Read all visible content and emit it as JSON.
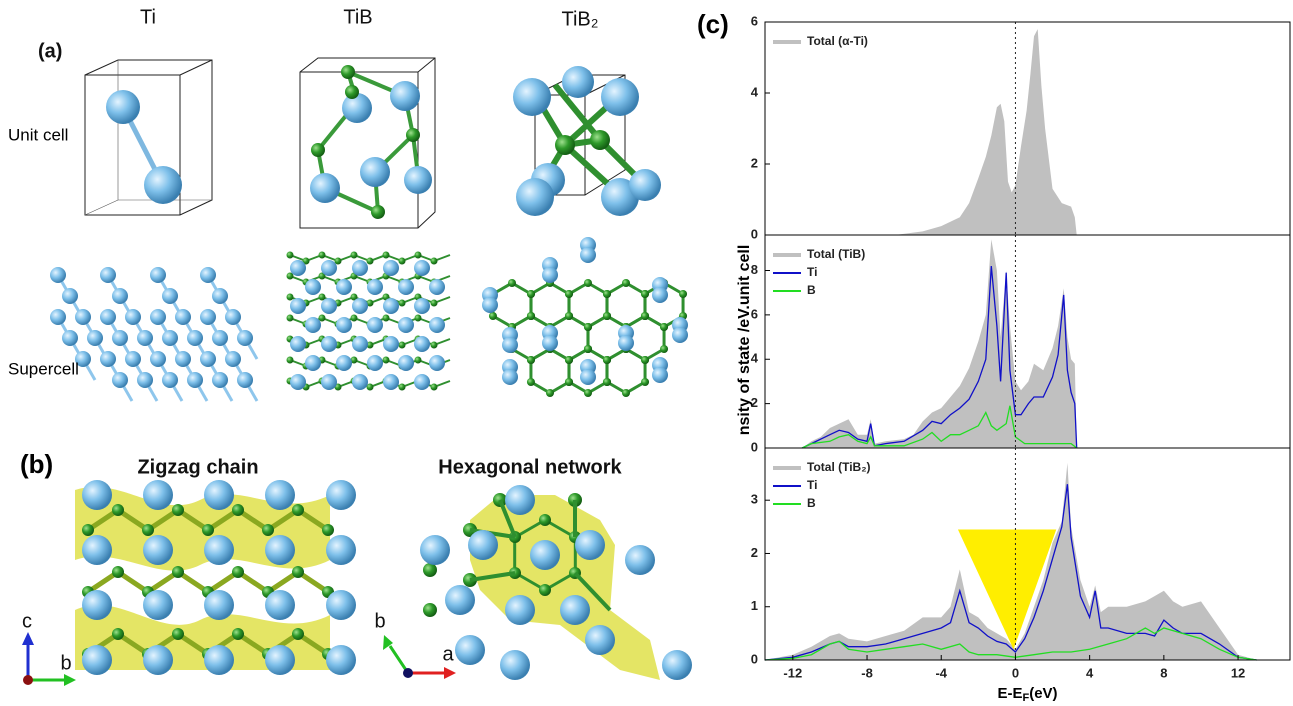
{
  "figure": {
    "panel_a": "(a)",
    "ti": "Ti",
    "tib": "TiB",
    "tib2": "TiB₂",
    "unit_cell": "Unit cell",
    "supercell": "Supercell",
    "panel_b": "(b)",
    "zigzag": "Zigzag chain",
    "hexagonal": "Hexagonal network",
    "axis_c": "c",
    "axis_b1": "b",
    "axis_b2": "b",
    "axis_a": "a",
    "panel_c": "(c)",
    "ylabel": "nsity of state /eV.unit cell"
  },
  "chart_data": [
    {
      "type": "line",
      "xlim": [
        -13.5,
        14.8
      ],
      "ylim": [
        0,
        6
      ],
      "yticks": [
        0,
        2,
        4,
        6
      ],
      "vline": 0,
      "series": [
        {
          "name": "Total (α-Ti)",
          "color": "#c0c0c0",
          "style": "area",
          "x": [
            -6.5,
            -5,
            -4,
            -3,
            -2.5,
            -2,
            -1.6,
            -1.3,
            -1,
            -0.8,
            -0.6,
            -0.4,
            -0.2,
            0,
            0.3,
            0.6,
            0.8,
            1,
            1.2,
            1.4,
            1.6,
            2,
            2.5,
            3,
            3.2,
            3.3
          ],
          "values": [
            0,
            0.1,
            0.25,
            0.5,
            0.9,
            1.6,
            2.2,
            2.8,
            3.6,
            3.7,
            3.2,
            1.5,
            1.2,
            1.4,
            2.5,
            3.5,
            4.5,
            5.6,
            5.8,
            4.2,
            3,
            1.3,
            0.9,
            0.8,
            0.5,
            0
          ]
        }
      ]
    },
    {
      "type": "line",
      "xlim": [
        -13.5,
        14.8
      ],
      "ylim": [
        0,
        9.6
      ],
      "yticks": [
        0,
        2,
        4,
        6,
        8
      ],
      "vline": 0,
      "series": [
        {
          "name": "Total (TiB)",
          "color": "#c0c0c0",
          "style": "area",
          "x": [
            -11.5,
            -11,
            -10.5,
            -10,
            -9.5,
            -9,
            -8.5,
            -8,
            -7.8,
            -7.6,
            -7,
            -6,
            -5.5,
            -5,
            -4.5,
            -4,
            -3.5,
            -3,
            -2.5,
            -2,
            -1.6,
            -1.3,
            -1,
            -0.8,
            -0.5,
            -0.3,
            0,
            0.3,
            0.7,
            1,
            1.5,
            2,
            2.3,
            2.6,
            2.8,
            3,
            3.2,
            3.3
          ],
          "values": [
            0,
            0.3,
            0.5,
            0.9,
            1.1,
            1.3,
            0.6,
            0.6,
            1.3,
            0.2,
            0.3,
            0.4,
            0.6,
            1.2,
            1.6,
            1.8,
            2.3,
            2.8,
            3.6,
            4.8,
            6,
            9.4,
            8,
            5,
            8,
            5.5,
            3,
            2.6,
            3,
            3.8,
            3.5,
            4.5,
            5.5,
            7.2,
            5,
            4,
            3.8,
            0
          ]
        },
        {
          "name": "Ti",
          "color": "#1010c8",
          "style": "line",
          "x": [
            -11.5,
            -11,
            -10,
            -9.5,
            -9,
            -8.5,
            -8,
            -7.8,
            -7.6,
            -7,
            -6,
            -5,
            -4.5,
            -4,
            -3.5,
            -3,
            -2.5,
            -2,
            -1.6,
            -1.3,
            -1,
            -0.8,
            -0.5,
            -0.3,
            0,
            0.3,
            0.7,
            1,
            1.5,
            2,
            2.3,
            2.6,
            2.8,
            3,
            3.2,
            3.3
          ],
          "values": [
            0,
            0.2,
            0.6,
            0.8,
            0.7,
            0.4,
            0.3,
            1.1,
            0.1,
            0.2,
            0.3,
            0.8,
            1.2,
            1.1,
            1.5,
            1.8,
            2.2,
            3,
            4,
            8.2,
            5.5,
            3,
            7.9,
            3.5,
            1.5,
            1.5,
            2,
            2.3,
            2.3,
            3.2,
            4.2,
            6.9,
            3.5,
            2.5,
            2,
            0
          ]
        },
        {
          "name": "B",
          "color": "#22dd22",
          "style": "line",
          "x": [
            -11.5,
            -11,
            -10,
            -9.5,
            -9,
            -8.5,
            -8,
            -7.8,
            -7.6,
            -7,
            -6,
            -5,
            -4.5,
            -4,
            -3.5,
            -3,
            -2.5,
            -2,
            -1.6,
            -1.3,
            -1,
            -0.5,
            -0.3,
            0,
            0.5,
            1,
            2,
            3,
            3.3
          ],
          "values": [
            0,
            0.2,
            0.3,
            0.5,
            0.6,
            0.3,
            0.2,
            0.5,
            0.1,
            0.1,
            0.1,
            0.4,
            0.7,
            0.3,
            0.6,
            0.6,
            0.8,
            1,
            1.6,
            1,
            0.8,
            1.1,
            1.9,
            0.5,
            0.2,
            0.2,
            0.2,
            0.2,
            0
          ]
        }
      ]
    },
    {
      "type": "line",
      "xlim": [
        -13.5,
        14.8
      ],
      "ylim": [
        0,
        3.98
      ],
      "yticks": [
        0,
        1,
        2,
        3
      ],
      "xticks": [
        -12,
        -8,
        -4,
        0,
        4,
        8,
        12
      ],
      "vline": 0,
      "xlabel": [
        "E-E",
        "F",
        "(eV)"
      ],
      "series": [
        {
          "name": "Total (TiB₂)",
          "color": "#c0c0c0",
          "style": "area",
          "x": [
            -13.5,
            -12,
            -11,
            -10,
            -9.5,
            -9,
            -8,
            -7,
            -6,
            -5,
            -4,
            -3.5,
            -3,
            -2.5,
            -2,
            -1.5,
            -1,
            -0.5,
            0,
            0.5,
            1,
            1.5,
            2,
            2.5,
            2.8,
            3,
            3.5,
            4,
            4.3,
            4.6,
            5,
            6,
            7,
            7.5,
            8,
            8.5,
            9,
            10,
            11,
            12,
            13
          ],
          "values": [
            0,
            0.1,
            0.25,
            0.45,
            0.5,
            0.4,
            0.35,
            0.45,
            0.55,
            0.8,
            0.8,
            1,
            1.7,
            0.9,
            0.8,
            0.6,
            0.5,
            0.4,
            0.2,
            0.5,
            1,
            1.5,
            2.2,
            2.6,
            3.7,
            2.5,
            1.5,
            1,
            1.4,
            0.9,
            1,
            1,
            1.1,
            1.2,
            1.3,
            1.1,
            1,
            1.1,
            0.6,
            0.1,
            0
          ]
        },
        {
          "name": "Ti",
          "color": "#1010c8",
          "style": "line",
          "x": [
            -13.5,
            -12,
            -11,
            -10,
            -9.5,
            -9,
            -8,
            -7,
            -6,
            -5,
            -4,
            -3.5,
            -3,
            -2.5,
            -2,
            -1.5,
            -1,
            -0.5,
            0,
            0.5,
            1,
            1.5,
            2,
            2.5,
            2.8,
            3,
            3.5,
            4,
            4.3,
            4.6,
            5,
            6,
            7,
            7.5,
            8,
            8.5,
            9,
            10,
            11,
            12,
            13
          ],
          "values": [
            0,
            0.05,
            0.15,
            0.3,
            0.35,
            0.25,
            0.25,
            0.3,
            0.4,
            0.5,
            0.6,
            0.7,
            1.3,
            0.7,
            0.6,
            0.45,
            0.35,
            0.3,
            0.15,
            0.4,
            0.8,
            1.3,
            1.9,
            2.5,
            3.3,
            2.3,
            1.2,
            0.8,
            1.3,
            0.6,
            0.6,
            0.5,
            0.5,
            0.45,
            0.75,
            0.6,
            0.5,
            0.5,
            0.3,
            0.05,
            0
          ]
        },
        {
          "name": "B",
          "color": "#22dd22",
          "style": "line",
          "x": [
            -13.5,
            -12,
            -11,
            -10,
            -9.5,
            -9,
            -8,
            -7,
            -6,
            -5,
            -4,
            -3,
            -2.5,
            -2,
            -1,
            0,
            1,
            2,
            3,
            4,
            5,
            6,
            7,
            7.5,
            8,
            9,
            10,
            11,
            12,
            13
          ],
          "values": [
            0,
            0.03,
            0.1,
            0.3,
            0.35,
            0.2,
            0.15,
            0.2,
            0.25,
            0.3,
            0.2,
            0.3,
            0.15,
            0.1,
            0.1,
            0.05,
            0.1,
            0.15,
            0.15,
            0.2,
            0.3,
            0.4,
            0.6,
            0.5,
            0.6,
            0.5,
            0.4,
            0.2,
            0.05,
            0
          ]
        }
      ]
    }
  ]
}
